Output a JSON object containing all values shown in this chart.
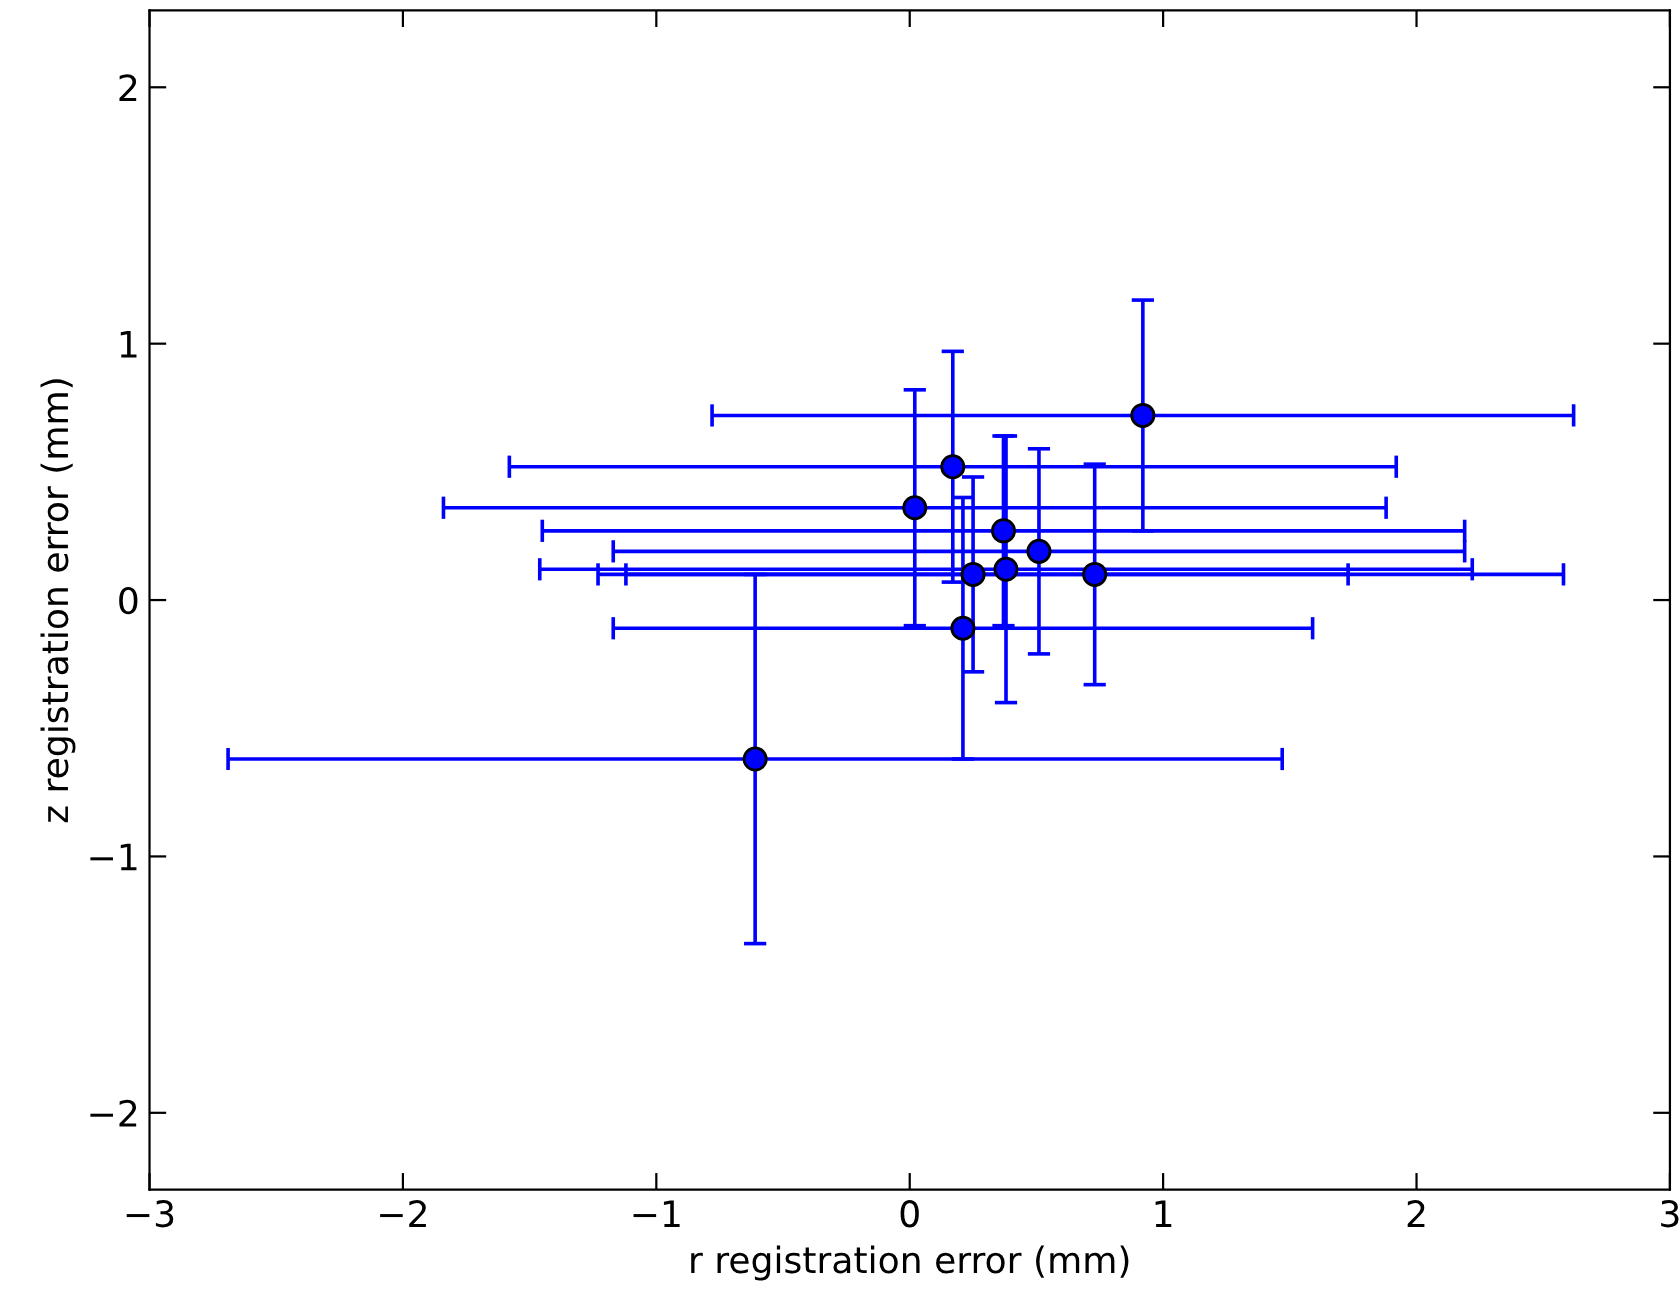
{
  "chart_data": {
    "type": "scatter",
    "xlabel": "r registration error (mm)",
    "ylabel": "z registration error (mm)",
    "x": [
      0.92,
      0.17,
      0.02,
      0.37,
      0.51,
      0.25,
      0.38,
      0.73,
      0.21,
      -0.61
    ],
    "values": [
      0.72,
      0.52,
      0.36,
      0.27,
      0.19,
      0.1,
      0.12,
      0.1,
      -0.11,
      -0.62
    ],
    "errors": [
      0.45,
      0.45,
      0.46,
      0.37,
      0.4,
      0.38,
      0.52,
      0.43,
      0.51,
      0.72
    ],
    "xerrors": [
      1.7,
      1.75,
      1.86,
      1.82,
      1.68,
      1.48,
      1.84,
      1.85,
      1.38,
      2.08
    ],
    "color": "#0000ff",
    "marker": "circle",
    "xlim": [
      -3,
      3
    ],
    "ylim": [
      -2.3,
      2.3
    ],
    "xticks": [
      {
        "value": -3,
        "label": "−3"
      },
      {
        "value": -2,
        "label": "−2"
      },
      {
        "value": -1,
        "label": "−1"
      },
      0,
      1,
      2,
      3
    ],
    "yticks": [
      {
        "value": -2,
        "label": "−2"
      },
      {
        "value": -1,
        "label": "−1"
      },
      0,
      1,
      2
    ],
    "grid": false,
    "legend": false
  }
}
